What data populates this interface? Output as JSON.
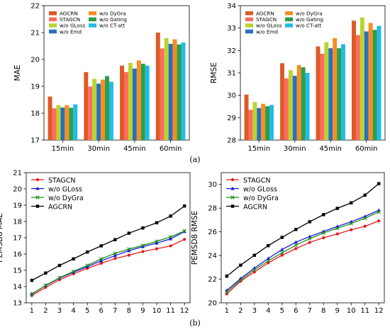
{
  "panel_captions": [
    "(a)",
    "(b)"
  ],
  "chart_data": [
    {
      "type": "bar",
      "categories": [
        "15min",
        "30min",
        "45min",
        "60min"
      ],
      "ylabel": "MAE",
      "xlabel": "",
      "ylim": [
        17,
        22
      ],
      "yticks": [
        17,
        18,
        19,
        20,
        21,
        22
      ],
      "legend_position": "top-left",
      "legend_columns": 2,
      "grid": false,
      "series": [
        {
          "name": "AGCRN",
          "color": "#dd5a26",
          "values": [
            18.62,
            19.53,
            19.77,
            21.0
          ]
        },
        {
          "name": "STAGCN",
          "color": "#ff6b5e",
          "values": [
            18.18,
            18.99,
            19.53,
            20.41
          ]
        },
        {
          "name": "w/o GLoss",
          "color": "#b8d430",
          "values": [
            18.3,
            19.28,
            19.87,
            20.79
          ]
        },
        {
          "name": "w/o Emd",
          "color": "#2a6fbb",
          "values": [
            18.21,
            19.1,
            19.66,
            20.58
          ]
        },
        {
          "name": "w/o DyGra",
          "color": "#f78d23",
          "values": [
            18.3,
            19.25,
            19.96,
            20.75
          ]
        },
        {
          "name": "w/o Gating",
          "color": "#2c9e48",
          "values": [
            18.2,
            19.38,
            19.84,
            20.56
          ]
        },
        {
          "name": "w/o CT-att",
          "color": "#21bce8",
          "values": [
            18.33,
            19.17,
            19.77,
            20.63
          ]
        }
      ]
    },
    {
      "type": "bar",
      "categories": [
        "15min",
        "30min",
        "45min",
        "60min"
      ],
      "ylabel": "RMSE",
      "xlabel": "",
      "ylim": [
        28,
        34
      ],
      "yticks": [
        28,
        29,
        30,
        31,
        32,
        33,
        34
      ],
      "legend_position": "top-left",
      "legend_columns": 2,
      "grid": false,
      "series": [
        {
          "name": "AGCRN",
          "color": "#dd5a26",
          "values": [
            30.03,
            31.43,
            32.18,
            33.33
          ]
        },
        {
          "name": "STAGCN",
          "color": "#ff6b5e",
          "values": [
            29.35,
            30.75,
            31.85,
            32.69
          ]
        },
        {
          "name": "w/o GLoss",
          "color": "#b8d430",
          "values": [
            29.7,
            31.12,
            32.37,
            33.47
          ]
        },
        {
          "name": "w/o Emd",
          "color": "#2a6fbb",
          "values": [
            29.43,
            30.87,
            32.1,
            32.85
          ]
        },
        {
          "name": "w/o DyGra",
          "color": "#f78d23",
          "values": [
            29.62,
            31.35,
            32.55,
            33.23
          ]
        },
        {
          "name": "w/o Gating",
          "color": "#2c9e48",
          "values": [
            29.51,
            31.25,
            32.1,
            32.92
          ]
        },
        {
          "name": "w/o CT-att",
          "color": "#21bce8",
          "values": [
            29.57,
            31.0,
            32.28,
            33.1
          ]
        }
      ]
    },
    {
      "type": "line",
      "x": [
        1,
        2,
        3,
        4,
        5,
        6,
        7,
        8,
        9,
        10,
        11,
        12
      ],
      "ylabel": "PEMSD8 MAE",
      "xlabel": "",
      "xlim": [
        0.6,
        12.4
      ],
      "ylim": [
        13,
        21
      ],
      "yticks": [
        13,
        14,
        15,
        16,
        17,
        18,
        19,
        20,
        21
      ],
      "legend_position": "top-left",
      "grid": false,
      "series": [
        {
          "name": "STAGCN",
          "color": "#e8191c",
          "marker": "circle",
          "values": [
            13.45,
            13.95,
            14.42,
            14.78,
            15.12,
            15.43,
            15.72,
            15.93,
            16.15,
            16.32,
            16.5,
            16.9
          ]
        },
        {
          "name": "w/o GLoss",
          "color": "#1a1adf",
          "marker": "triangle",
          "values": [
            13.55,
            14.06,
            14.52,
            14.88,
            15.22,
            15.58,
            15.9,
            16.2,
            16.45,
            16.67,
            16.93,
            17.38
          ]
        },
        {
          "name": "w/o DyGra",
          "color": "#1e8f1e",
          "marker": "cross",
          "values": [
            13.52,
            14.08,
            14.54,
            14.93,
            15.3,
            15.7,
            16.04,
            16.3,
            16.53,
            16.78,
            17.05,
            17.42
          ]
        },
        {
          "name": "AGCRN",
          "color": "#000000",
          "marker": "square",
          "values": [
            14.38,
            14.83,
            15.3,
            15.7,
            16.12,
            16.5,
            16.88,
            17.28,
            17.6,
            17.92,
            18.33,
            18.95
          ]
        }
      ]
    },
    {
      "type": "line",
      "x": [
        1,
        2,
        3,
        4,
        5,
        6,
        7,
        8,
        9,
        10,
        11,
        12
      ],
      "ylabel": "PEMSD8 RMSE",
      "xlabel": "",
      "xlim": [
        0.6,
        12.4
      ],
      "ylim": [
        20,
        31
      ],
      "yticks": [
        20,
        22,
        24,
        26,
        28,
        30
      ],
      "legend_position": "top-left",
      "grid": false,
      "series": [
        {
          "name": "STAGCN",
          "color": "#e8191c",
          "marker": "circle",
          "values": [
            20.75,
            21.82,
            22.6,
            23.38,
            24.02,
            24.58,
            25.1,
            25.5,
            25.82,
            26.17,
            26.47,
            26.92
          ]
        },
        {
          "name": "w/o GLoss",
          "color": "#1a1adf",
          "marker": "triangle",
          "values": [
            21.05,
            22.05,
            22.93,
            23.75,
            24.5,
            25.12,
            25.6,
            26.03,
            26.45,
            26.85,
            27.3,
            27.82
          ]
        },
        {
          "name": "w/o DyGra",
          "color": "#1e8f1e",
          "marker": "cross",
          "values": [
            20.92,
            21.93,
            22.78,
            23.55,
            24.22,
            24.87,
            25.42,
            25.9,
            26.3,
            26.7,
            27.15,
            27.68
          ]
        },
        {
          "name": "AGCRN",
          "color": "#000000",
          "marker": "square",
          "values": [
            22.25,
            23.18,
            24.02,
            24.83,
            25.53,
            26.2,
            26.85,
            27.45,
            27.98,
            28.45,
            29.1,
            30.07
          ]
        }
      ]
    }
  ]
}
